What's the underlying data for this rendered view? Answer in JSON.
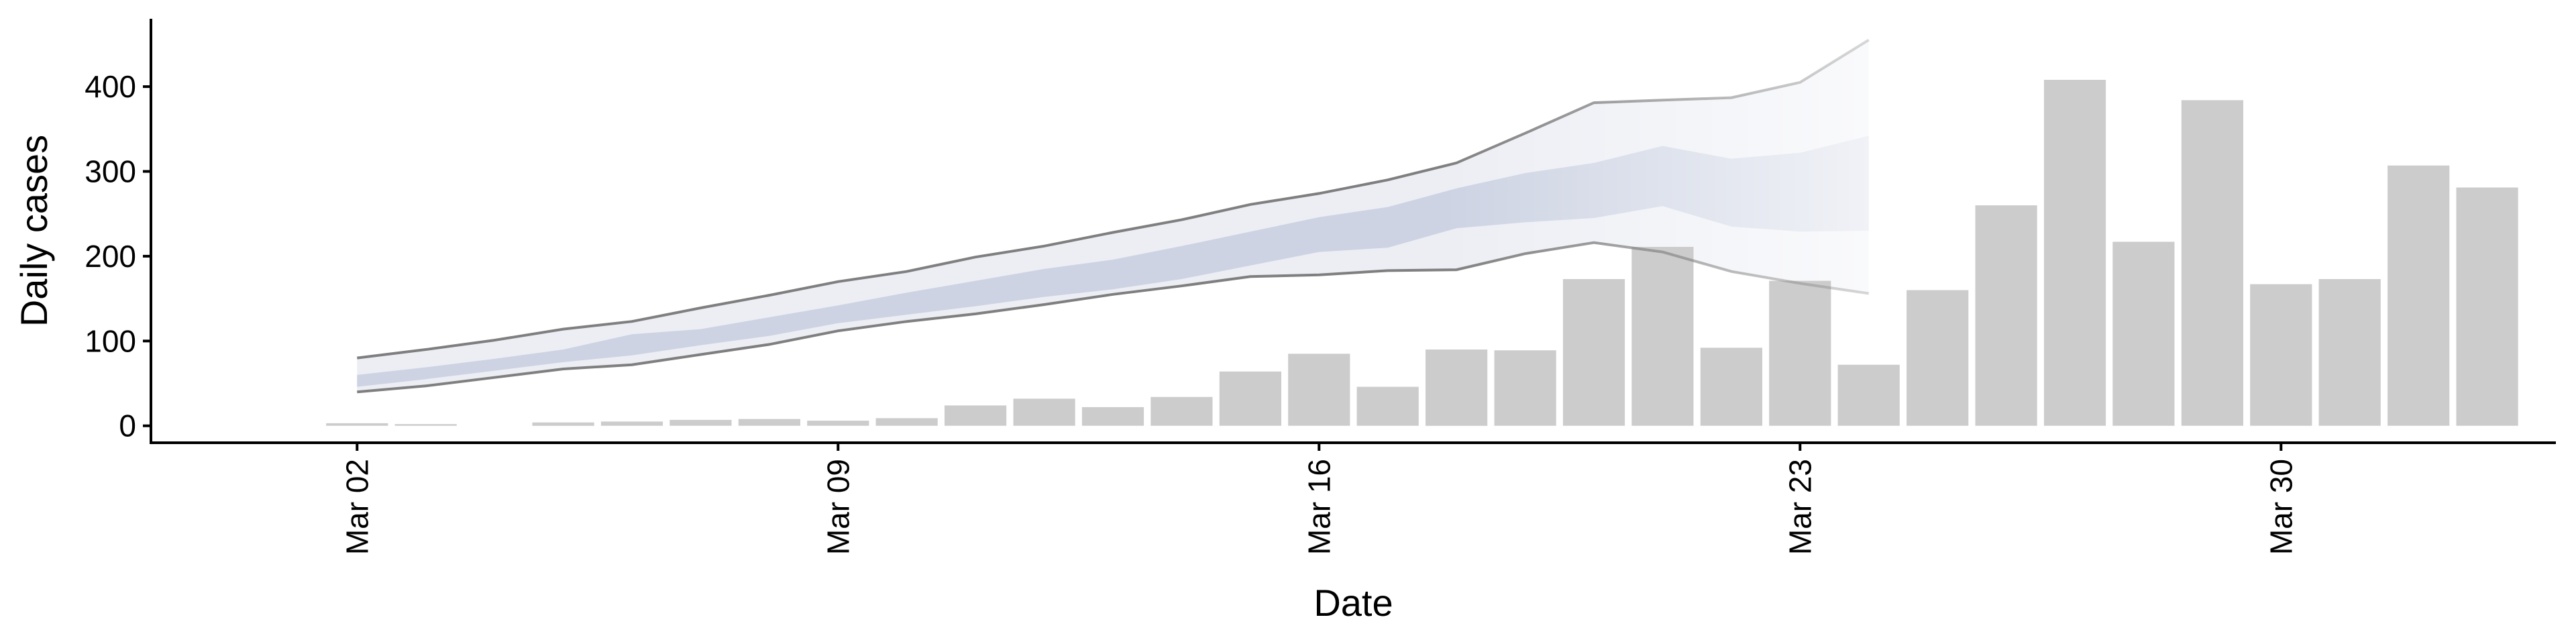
{
  "chart_data": {
    "type": "bar",
    "title": "",
    "xlabel": "Date",
    "ylabel": "Daily cases",
    "x_tick_labels": [
      "Mar 02",
      "Mar 09",
      "Mar 16",
      "Mar 23",
      "Mar 30"
    ],
    "x_tick_dates": [
      "2020-03-02",
      "2020-03-09",
      "2020-03-16",
      "2020-03-23",
      "2020-03-30"
    ],
    "y_ticks": [
      0,
      100,
      200,
      300,
      400
    ],
    "ylim": [
      -20,
      480
    ],
    "xlim": [
      "2020-02-28",
      "2020-04-03"
    ],
    "grid": false,
    "legend": "none",
    "colors": {
      "bars": "#cccccc",
      "outer_band": "#eceef4",
      "inner_band": "#cdd3e3",
      "bound_line": "#7f7f7f"
    },
    "bars": {
      "dates": [
        "2020-03-02",
        "2020-03-03",
        "2020-03-04",
        "2020-03-05",
        "2020-03-06",
        "2020-03-07",
        "2020-03-08",
        "2020-03-09",
        "2020-03-10",
        "2020-03-11",
        "2020-03-12",
        "2020-03-13",
        "2020-03-14",
        "2020-03-15",
        "2020-03-16",
        "2020-03-17",
        "2020-03-18",
        "2020-03-19",
        "2020-03-20",
        "2020-03-21",
        "2020-03-22",
        "2020-03-23",
        "2020-03-24",
        "2020-03-25",
        "2020-03-26",
        "2020-03-27",
        "2020-03-28",
        "2020-03-29",
        "2020-03-30",
        "2020-03-31",
        "2020-04-01",
        "2020-04-02",
        "2020-04-03"
      ],
      "values": [
        3,
        2,
        0,
        4,
        5,
        7,
        8,
        6,
        9,
        24,
        32,
        22,
        34,
        64,
        85,
        46,
        90,
        89,
        173,
        211,
        92,
        171,
        72,
        160,
        260,
        408,
        217,
        384,
        167,
        173,
        307,
        281,
        0
      ]
    },
    "estimate_band": {
      "dates": [
        "2020-03-02",
        "2020-03-03",
        "2020-03-04",
        "2020-03-05",
        "2020-03-06",
        "2020-03-07",
        "2020-03-08",
        "2020-03-09",
        "2020-03-10",
        "2020-03-11",
        "2020-03-12",
        "2020-03-13",
        "2020-03-14",
        "2020-03-15",
        "2020-03-16",
        "2020-03-17",
        "2020-03-18",
        "2020-03-19",
        "2020-03-20",
        "2020-03-21",
        "2020-03-22",
        "2020-03-23",
        "2020-03-24"
      ],
      "outer_upper": [
        80,
        90,
        101,
        114,
        123,
        139,
        154,
        170,
        182,
        199,
        212,
        228,
        243,
        261,
        274,
        290,
        310,
        345,
        381,
        384,
        387,
        405,
        455
      ],
      "outer_lower": [
        40,
        47,
        57,
        67,
        72,
        84,
        96,
        112,
        123,
        132,
        143,
        155,
        165,
        176,
        178,
        183,
        184,
        203,
        216,
        205,
        182,
        168,
        156
      ],
      "inner_upper": [
        60,
        69,
        79,
        90,
        108,
        114,
        128,
        142,
        157,
        171,
        185,
        196,
        212,
        229,
        246,
        258,
        280,
        298,
        310,
        330,
        315,
        322,
        342
      ],
      "inner_lower": [
        46,
        55,
        65,
        75,
        83,
        95,
        106,
        121,
        131,
        141,
        152,
        161,
        173,
        189,
        205,
        210,
        233,
        240,
        245,
        259,
        235,
        229,
        230
      ]
    }
  }
}
